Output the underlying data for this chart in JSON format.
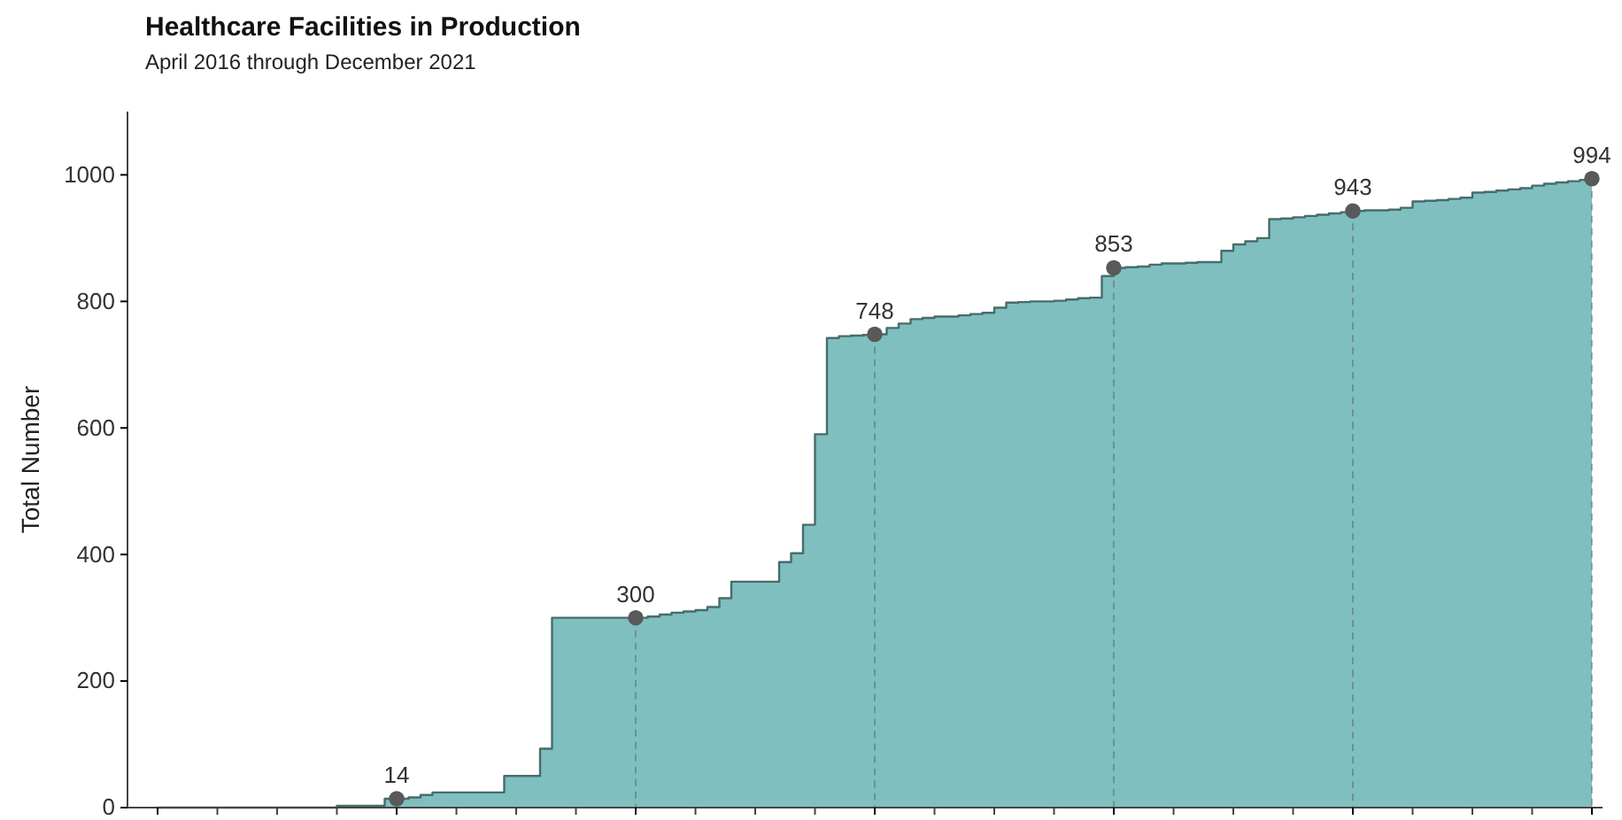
{
  "chart_data": {
    "type": "area",
    "title": "Healthcare Facilities in Production",
    "subtitle": "April 2016 through December 2021",
    "ylabel": "Total Number",
    "categories": [
      null,
      null,
      null,
      null,
      null,
      null,
      null,
      null,
      null,
      null,
      null,
      null,
      null,
      null,
      null,
      null,
      null,
      null,
      null,
      null,
      null,
      null,
      null,
      null,
      null,
      null,
      null,
      null,
      null,
      null,
      null,
      null,
      null,
      null,
      null,
      null,
      null,
      null,
      null,
      null,
      null,
      null,
      null,
      null,
      null,
      null,
      null,
      null,
      null,
      null,
      null,
      null,
      null,
      null,
      null,
      null,
      null,
      null,
      null,
      null,
      null,
      null,
      null,
      null,
      null,
      null,
      null,
      null,
      null,
      null,
      null,
      null,
      null,
      null,
      null,
      null,
      null,
      null,
      null,
      null,
      null,
      null,
      null,
      null,
      null,
      null,
      null,
      null,
      null,
      null,
      null,
      null,
      null,
      null,
      null,
      null,
      null,
      null,
      null,
      null,
      null,
      null,
      null,
      null,
      null,
      null,
      null,
      null,
      null,
      null,
      null,
      null,
      null,
      null,
      null,
      null,
      null,
      null,
      null,
      null,
      null
    ],
    "ylim": [
      0,
      1100
    ],
    "grid": "x",
    "yticks": [
      0,
      200,
      400,
      600,
      800,
      1000
    ],
    "series": [
      {
        "color": "#7fbfbf",
        "values": [
          0,
          0,
          0,
          0,
          0,
          0,
          0,
          0,
          0,
          0,
          0,
          0,
          0,
          0,
          0,
          3,
          3,
          3,
          3,
          14,
          14,
          16,
          20,
          24,
          24,
          24,
          24,
          24,
          24,
          50,
          50,
          50,
          93,
          300,
          300,
          300,
          300,
          300,
          300,
          300,
          300,
          302,
          305,
          308,
          310,
          312,
          317,
          331,
          357,
          357,
          357,
          357,
          388,
          402,
          447,
          590,
          742,
          745,
          746,
          747,
          748,
          758,
          765,
          772,
          774,
          776,
          776,
          778,
          780,
          782,
          790,
          798,
          799,
          800,
          800,
          801,
          803,
          805,
          806,
          840,
          853,
          854,
          855,
          858,
          860,
          860,
          861,
          862,
          862,
          880,
          890,
          895,
          900,
          930,
          931,
          933,
          935,
          937,
          939,
          941,
          943,
          944,
          944,
          945,
          948,
          958,
          959,
          960,
          962,
          964,
          972,
          973,
          975,
          977,
          979,
          983,
          986,
          988,
          990,
          992,
          994
        ]
      },
      {
        "type": "scatter",
        "color": "#595959",
        "marker": "circle",
        "values": [
          null,
          null,
          null,
          null,
          null,
          null,
          null,
          null,
          null,
          null,
          null,
          null,
          null,
          null,
          null,
          null,
          null,
          null,
          null,
          null,
          14,
          null,
          null,
          null,
          null,
          null,
          null,
          null,
          null,
          null,
          null,
          null,
          null,
          null,
          null,
          null,
          null,
          null,
          null,
          null,
          300,
          null,
          null,
          null,
          null,
          null,
          null,
          null,
          null,
          null,
          null,
          null,
          null,
          null,
          null,
          null,
          null,
          null,
          null,
          null,
          748,
          null,
          null,
          null,
          null,
          null,
          null,
          null,
          null,
          null,
          null,
          null,
          null,
          null,
          null,
          null,
          null,
          null,
          null,
          null,
          853,
          null,
          null,
          null,
          null,
          null,
          null,
          null,
          null,
          null,
          null,
          null,
          null,
          null,
          null,
          null,
          null,
          null,
          null,
          null,
          943,
          null,
          null,
          null,
          null,
          null,
          null,
          null,
          null,
          null,
          null,
          null,
          null,
          null,
          null,
          null,
          null,
          null,
          null,
          null,
          994
        ],
        "value_labels": [
          null,
          null,
          null,
          null,
          null,
          null,
          null,
          null,
          null,
          null,
          null,
          null,
          null,
          null,
          null,
          null,
          null,
          null,
          null,
          null,
          "14",
          null,
          null,
          null,
          null,
          null,
          null,
          null,
          null,
          null,
          null,
          null,
          null,
          null,
          null,
          null,
          null,
          null,
          null,
          null,
          "300",
          null,
          null,
          null,
          null,
          null,
          null,
          null,
          null,
          null,
          null,
          null,
          null,
          null,
          null,
          null,
          null,
          null,
          null,
          null,
          "748",
          null,
          null,
          null,
          null,
          null,
          null,
          null,
          null,
          null,
          null,
          null,
          null,
          null,
          null,
          null,
          null,
          null,
          null,
          null,
          "853",
          null,
          null,
          null,
          null,
          null,
          null,
          null,
          null,
          null,
          null,
          null,
          null,
          null,
          null,
          null,
          null,
          null,
          null,
          null,
          "943",
          null,
          null,
          null,
          null,
          null,
          null,
          null,
          null,
          null,
          null,
          null,
          null,
          null,
          null,
          null,
          null,
          null,
          null,
          null,
          "994"
        ]
      }
    ]
  }
}
